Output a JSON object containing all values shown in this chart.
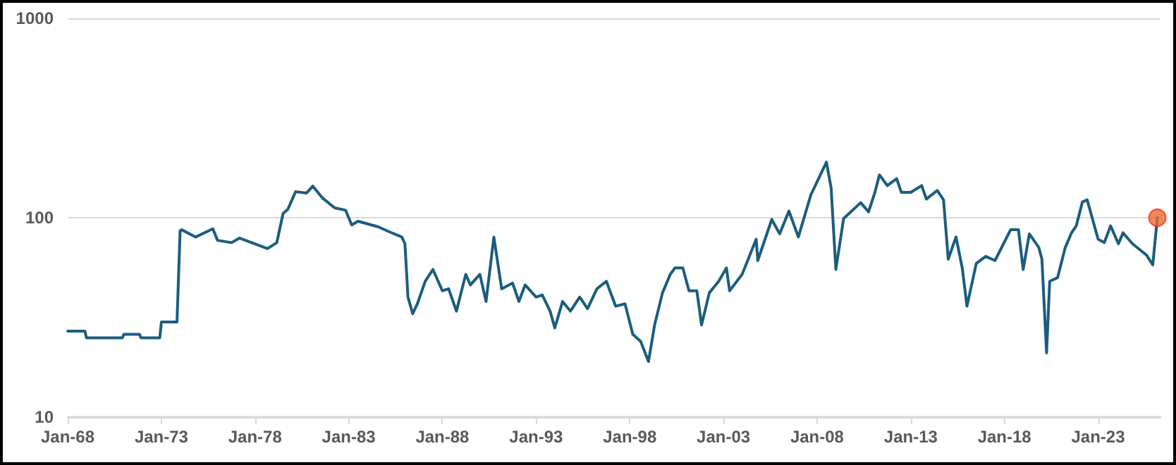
{
  "chart_data": {
    "type": "line",
    "log": "y",
    "grid": "y",
    "xlim": [
      "1968-01",
      "2026-05"
    ],
    "xticks": [
      {
        "value": "1968-01",
        "label": "Jan-68"
      },
      {
        "value": "1973-01",
        "label": "Jan-73"
      },
      {
        "value": "1978-01",
        "label": "Jan-78"
      },
      {
        "value": "1983-01",
        "label": "Jan-83"
      },
      {
        "value": "1988-01",
        "label": "Jan-88"
      },
      {
        "value": "1993-01",
        "label": "Jan-93"
      },
      {
        "value": "1998-01",
        "label": "Jan-98"
      },
      {
        "value": "2003-01",
        "label": "Jan-03"
      },
      {
        "value": "2008-01",
        "label": "Jan-08"
      },
      {
        "value": "2013-01",
        "label": "Jan-13"
      },
      {
        "value": "2018-01",
        "label": "Jan-18"
      },
      {
        "value": "2023-01",
        "label": "Jan-23"
      }
    ],
    "ylim": [
      10,
      1000
    ],
    "yticks": [
      10,
      100,
      1000
    ],
    "series": [
      {
        "color": "#1b5d7e",
        "marker": "none",
        "line_style": "solid",
        "x": [
          "1968-01",
          "1968-12",
          "1969-01",
          "1970-12",
          "1971-01",
          "1971-11",
          "1971-12",
          "1972-12",
          "1973-01",
          "1973-11",
          "1974-01",
          "1974-02",
          "1974-11",
          "1975-10",
          "1976-01",
          "1976-10",
          "1977-03",
          "1978-09",
          "1979-03",
          "1979-07",
          "1979-10",
          "1980-03",
          "1980-10",
          "1981-02",
          "1981-08",
          "1982-04",
          "1982-11",
          "1983-03",
          "1983-07",
          "1984-08",
          "1985-03",
          "1985-11",
          "1986-01",
          "1986-03",
          "1986-06",
          "1986-09",
          "1987-02",
          "1987-07",
          "1988-01",
          "1988-05",
          "1988-10",
          "1989-04",
          "1989-07",
          "1990-01",
          "1990-05",
          "1990-10",
          "1991-03",
          "1991-10",
          "1992-02",
          "1992-06",
          "1993-01",
          "1993-05",
          "1993-10",
          "1994-01",
          "1994-06",
          "1994-11",
          "1995-05",
          "1995-10",
          "1996-04",
          "1996-10",
          "1997-04",
          "1997-10",
          "1998-03",
          "1998-08",
          "1999-01",
          "1999-05",
          "1999-10",
          "2000-03",
          "2000-06",
          "2000-11",
          "2001-03",
          "2001-08",
          "2001-11",
          "2002-04",
          "2002-10",
          "2003-03",
          "2003-05",
          "2004-01",
          "2004-10",
          "2004-11",
          "2005-08",
          "2006-01",
          "2006-07",
          "2007-01",
          "2007-09",
          "2008-07",
          "2008-10",
          "2009-01",
          "2009-06",
          "2010-05",
          "2010-10",
          "2011-02",
          "2011-05",
          "2011-10",
          "2012-04",
          "2012-07",
          "2013-01",
          "2013-08",
          "2013-11",
          "2014-06",
          "2014-10",
          "2015-01",
          "2015-06",
          "2015-10",
          "2016-01",
          "2016-07",
          "2017-01",
          "2017-07",
          "2018-05",
          "2018-10",
          "2019-01",
          "2019-05",
          "2019-11",
          "2020-01",
          "2020-04",
          "2020-06",
          "2020-11",
          "2021-04",
          "2021-08",
          "2021-11",
          "2022-03",
          "2022-06",
          "2023-01",
          "2023-05",
          "2023-09",
          "2024-02",
          "2024-05",
          "2024-11",
          "2025-08",
          "2025-12",
          "2026-03"
        ],
        "values": [
          27,
          27,
          25,
          25,
          26,
          26,
          25,
          25,
          30,
          30,
          86,
          87,
          80,
          88,
          77,
          75,
          79,
          70,
          75,
          105,
          110,
          135,
          133,
          144,
          126,
          112,
          109,
          92,
          96,
          90,
          85,
          80,
          74,
          40,
          33,
          37,
          48,
          55,
          43,
          44,
          34,
          52,
          46,
          52,
          38,
          80,
          44,
          47,
          38,
          46,
          40,
          41,
          34,
          28,
          38,
          34,
          40,
          35,
          44,
          48,
          36,
          37,
          26,
          24,
          19,
          29,
          42,
          52,
          56,
          56,
          43,
          43,
          29,
          42,
          48,
          56,
          43,
          52,
          78,
          61,
          98,
          83,
          108,
          80,
          130,
          190,
          141,
          55,
          99,
          119,
          107,
          134,
          164,
          145,
          157,
          134,
          134,
          145,
          124,
          137,
          123,
          62,
          80,
          56,
          36,
          59,
          64,
          61,
          87,
          87,
          55,
          83,
          71,
          62,
          21,
          48,
          50,
          71,
          84,
          91,
          120,
          123,
          78,
          75,
          91,
          74,
          84,
          74,
          65,
          58,
          100
        ]
      },
      {
        "type": "scatter",
        "color": "#ec6b2d",
        "marker": "circle",
        "x": [
          "2026-03"
        ],
        "values": [
          100
        ]
      }
    ]
  }
}
